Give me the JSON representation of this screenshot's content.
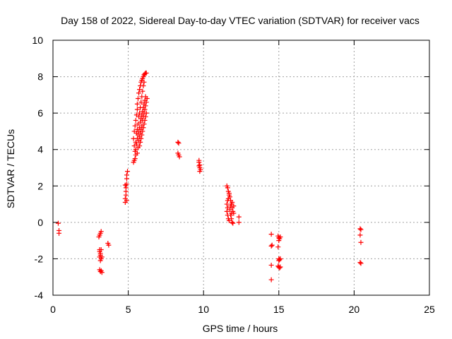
{
  "chart_data": {
    "type": "scatter",
    "title": "Day 158 of 2022, Sidereal Day-to-day VTEC variation (SDTVAR) for receiver vacs",
    "xlabel": "GPS time / hours",
    "ylabel": "SDTVAR / TECUs",
    "xlim": [
      0,
      25
    ],
    "ylim": [
      -4,
      10
    ],
    "xticks": [
      "0",
      "5",
      "10",
      "15",
      "20",
      "25"
    ],
    "yticks": [
      "-4",
      "-2",
      "0",
      "2",
      "4",
      "6",
      "8",
      "10"
    ],
    "grid": true,
    "marker": "+",
    "color": "#ff0000",
    "series": [
      {
        "name": "SDTVAR",
        "points": [
          [
            0.35,
            -0.05
          ],
          [
            0.4,
            -0.45
          ],
          [
            0.4,
            -0.6
          ],
          [
            3.05,
            -0.8
          ],
          [
            3.1,
            -0.7
          ],
          [
            3.15,
            -0.6
          ],
          [
            3.2,
            -0.5
          ],
          [
            3.1,
            -1.5
          ],
          [
            3.1,
            -1.6
          ],
          [
            3.15,
            -1.7
          ],
          [
            3.15,
            -1.8
          ],
          [
            3.1,
            -1.9
          ],
          [
            3.2,
            -2.0
          ],
          [
            3.15,
            -2.1
          ],
          [
            3.2,
            -1.5
          ],
          [
            3.25,
            -1.9
          ],
          [
            3.1,
            -2.6
          ],
          [
            3.15,
            -2.7
          ],
          [
            3.2,
            -2.65
          ],
          [
            3.25,
            -2.75
          ],
          [
            3.65,
            -1.15
          ],
          [
            3.7,
            -1.25
          ],
          [
            4.8,
            1.1
          ],
          [
            4.8,
            1.3
          ],
          [
            4.85,
            1.5
          ],
          [
            4.85,
            1.7
          ],
          [
            4.85,
            1.9
          ],
          [
            4.9,
            2.1
          ],
          [
            4.8,
            2.05
          ],
          [
            4.9,
            2.4
          ],
          [
            4.9,
            2.6
          ],
          [
            4.95,
            2.8
          ],
          [
            4.9,
            1.2
          ],
          [
            5.35,
            3.3
          ],
          [
            5.4,
            3.4
          ],
          [
            5.45,
            3.5
          ],
          [
            5.5,
            3.7
          ],
          [
            5.4,
            4.2
          ],
          [
            5.35,
            4.6
          ],
          [
            5.4,
            5.0
          ],
          [
            5.45,
            5.3
          ],
          [
            5.5,
            5.6
          ],
          [
            5.55,
            5.9
          ],
          [
            5.6,
            6.2
          ],
          [
            5.6,
            6.5
          ],
          [
            5.65,
            6.8
          ],
          [
            5.7,
            7.1
          ],
          [
            5.75,
            7.3
          ],
          [
            5.8,
            7.5
          ],
          [
            5.85,
            7.7
          ],
          [
            5.9,
            7.8
          ],
          [
            5.95,
            7.9
          ],
          [
            6.0,
            8.0
          ],
          [
            6.05,
            8.1
          ],
          [
            6.1,
            8.15
          ],
          [
            6.15,
            8.2
          ],
          [
            6.2,
            8.2
          ],
          [
            5.5,
            4.0
          ],
          [
            5.55,
            4.3
          ],
          [
            5.6,
            4.6
          ],
          [
            5.65,
            4.8
          ],
          [
            5.7,
            5.0
          ],
          [
            5.75,
            5.2
          ],
          [
            5.8,
            5.5
          ],
          [
            5.85,
            5.7
          ],
          [
            5.9,
            5.9
          ],
          [
            5.95,
            6.1
          ],
          [
            6.0,
            6.3
          ],
          [
            6.05,
            6.5
          ],
          [
            6.1,
            6.7
          ],
          [
            6.15,
            6.9
          ],
          [
            5.45,
            3.9
          ],
          [
            5.5,
            4.4
          ],
          [
            5.55,
            4.9
          ],
          [
            5.6,
            5.1
          ],
          [
            5.65,
            5.4
          ],
          [
            5.7,
            5.8
          ],
          [
            5.75,
            6.0
          ],
          [
            5.8,
            6.3
          ],
          [
            5.85,
            6.6
          ],
          [
            5.9,
            6.9
          ],
          [
            5.95,
            7.2
          ],
          [
            6.0,
            7.5
          ],
          [
            6.05,
            7.7
          ],
          [
            5.6,
            3.8
          ],
          [
            5.65,
            4.1
          ],
          [
            5.7,
            4.5
          ],
          [
            5.75,
            4.7
          ],
          [
            5.8,
            4.9
          ],
          [
            5.85,
            5.1
          ],
          [
            5.9,
            5.3
          ],
          [
            5.95,
            5.6
          ],
          [
            6.0,
            5.8
          ],
          [
            6.05,
            6.0
          ],
          [
            6.1,
            6.2
          ],
          [
            6.15,
            6.4
          ],
          [
            6.2,
            6.6
          ],
          [
            6.25,
            6.8
          ],
          [
            5.75,
            4.2
          ],
          [
            5.8,
            4.4
          ],
          [
            5.85,
            4.6
          ],
          [
            5.9,
            4.8
          ],
          [
            5.95,
            5.0
          ],
          [
            6.0,
            5.2
          ],
          [
            6.05,
            5.4
          ],
          [
            6.1,
            5.6
          ],
          [
            6.15,
            5.8
          ],
          [
            6.2,
            6.0
          ],
          [
            8.3,
            4.4
          ],
          [
            8.35,
            4.35
          ],
          [
            8.3,
            3.8
          ],
          [
            8.35,
            3.7
          ],
          [
            8.4,
            3.6
          ],
          [
            9.7,
            3.4
          ],
          [
            9.7,
            3.1
          ],
          [
            9.75,
            3.0
          ],
          [
            9.8,
            2.9
          ],
          [
            9.75,
            2.8
          ],
          [
            9.7,
            3.3
          ],
          [
            9.75,
            3.15
          ],
          [
            11.55,
            2.0
          ],
          [
            11.6,
            1.9
          ],
          [
            11.65,
            1.7
          ],
          [
            11.7,
            1.5
          ],
          [
            11.6,
            1.2
          ],
          [
            11.55,
            1.0
          ],
          [
            11.6,
            0.8
          ],
          [
            11.55,
            0.6
          ],
          [
            11.6,
            0.4
          ],
          [
            11.65,
            0.2
          ],
          [
            11.7,
            0.1
          ],
          [
            11.75,
            1.4
          ],
          [
            11.8,
            1.2
          ],
          [
            11.85,
            1.0
          ],
          [
            11.9,
            0.8
          ],
          [
            11.95,
            0.6
          ],
          [
            11.8,
            0.4
          ],
          [
            11.85,
            0.2
          ],
          [
            11.9,
            0.0
          ],
          [
            11.75,
            0.7
          ],
          [
            11.8,
            0.9
          ],
          [
            11.9,
            1.1
          ],
          [
            12.0,
            0.9
          ],
          [
            12.0,
            0.5
          ],
          [
            11.7,
            1.6
          ],
          [
            11.65,
            1.3
          ],
          [
            11.85,
            0.5
          ],
          [
            11.95,
            -0.05
          ],
          [
            12.35,
            0.3
          ],
          [
            12.35,
            0.0
          ],
          [
            14.5,
            -0.65
          ],
          [
            14.5,
            -1.3
          ],
          [
            14.55,
            -1.25
          ],
          [
            14.5,
            -2.35
          ],
          [
            14.5,
            -3.15
          ],
          [
            14.95,
            -0.75
          ],
          [
            15.0,
            -0.85
          ],
          [
            15.05,
            -0.9
          ],
          [
            15.0,
            -1.0
          ],
          [
            15.1,
            -0.8
          ],
          [
            14.95,
            -1.35
          ],
          [
            15.0,
            -2.0
          ],
          [
            15.05,
            -2.05
          ],
          [
            15.0,
            -2.1
          ],
          [
            15.1,
            -2.0
          ],
          [
            14.95,
            -2.4
          ],
          [
            15.0,
            -2.45
          ],
          [
            15.05,
            -2.5
          ],
          [
            15.1,
            -2.45
          ],
          [
            20.4,
            -0.35
          ],
          [
            20.45,
            -0.4
          ],
          [
            20.4,
            -0.7
          ],
          [
            20.45,
            -1.1
          ],
          [
            20.4,
            -2.2
          ],
          [
            20.45,
            -2.25
          ]
        ]
      }
    ]
  }
}
